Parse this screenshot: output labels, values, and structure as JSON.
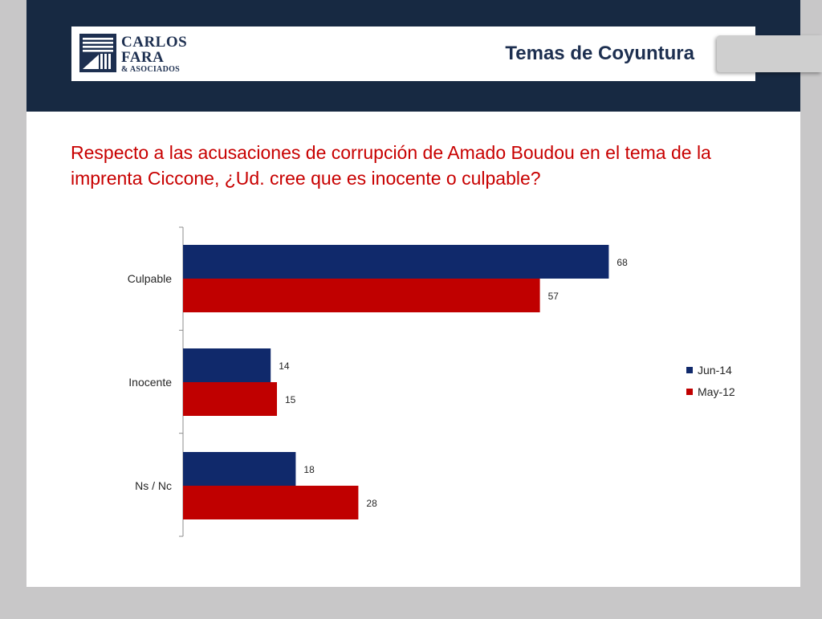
{
  "header": {
    "logo_line1": "CARLOS",
    "logo_line2": "FARA",
    "logo_line3": "& ASOCIADOS",
    "title": "Temas de Coyuntura"
  },
  "question": "Respecto a las acusaciones de corrupción de Amado Boudou en el tema de la imprenta Ciccone, ¿Ud. cree que es inocente o culpable?",
  "colors": {
    "navy": "#172942",
    "series_jun14": "#10296b",
    "series_may12": "#c00000",
    "question_red": "#c80000"
  },
  "chart_data": {
    "type": "bar",
    "orientation": "horizontal",
    "categories": [
      "Culpable",
      "Inocente",
      "Ns / Nc"
    ],
    "series": [
      {
        "name": "Jun-14",
        "values": [
          68,
          14,
          18
        ],
        "color": "#10296b"
      },
      {
        "name": "May-12",
        "values": [
          57,
          15,
          28
        ],
        "color": "#c00000"
      }
    ],
    "xlim": [
      0,
      90
    ],
    "grid": false,
    "legend": "right",
    "data_labels": true
  }
}
